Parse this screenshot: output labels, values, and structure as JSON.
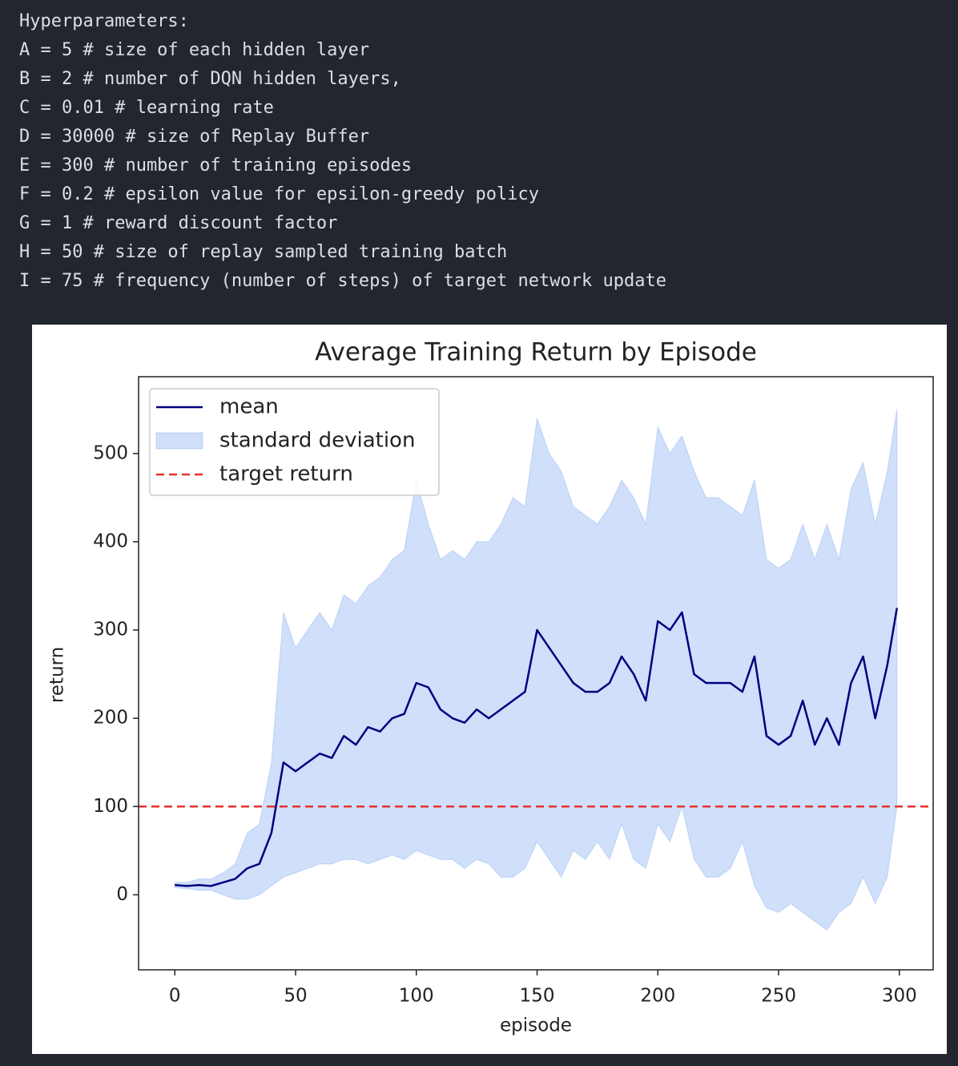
{
  "code": {
    "heading": "Hyperparameters:",
    "lines": [
      "A = 5 # size of each hidden layer",
      "B = 2 # number of DQN hidden layers,",
      "C = 0.01 # learning rate",
      "D = 30000 # size of Replay Buffer",
      "E = 300 # number of training episodes",
      "F = 0.2 # epsilon value for epsilon-greedy policy",
      "G = 1 # reward discount factor",
      "H = 50 # size of replay sampled training batch",
      "I = 75 # frequency (number of steps) of target network update"
    ]
  },
  "chart_data": {
    "type": "line",
    "title": "Average Training Return by Episode",
    "x_label": "episode",
    "y_label": "return",
    "x": [
      0,
      5,
      10,
      15,
      20,
      25,
      30,
      35,
      40,
      45,
      50,
      55,
      60,
      65,
      70,
      75,
      80,
      85,
      90,
      95,
      100,
      105,
      110,
      115,
      120,
      125,
      130,
      135,
      140,
      145,
      150,
      155,
      160,
      165,
      170,
      175,
      180,
      185,
      190,
      195,
      200,
      205,
      210,
      215,
      220,
      225,
      230,
      235,
      240,
      245,
      250,
      255,
      260,
      265,
      270,
      275,
      280,
      285,
      290,
      295,
      299
    ],
    "series": [
      {
        "name": "mean",
        "color": "#00007f",
        "values": [
          11,
          10,
          11,
          10,
          14,
          18,
          30,
          35,
          70,
          150,
          140,
          150,
          160,
          155,
          180,
          170,
          190,
          185,
          200,
          205,
          240,
          235,
          210,
          200,
          195,
          210,
          200,
          210,
          220,
          230,
          300,
          280,
          260,
          240,
          230,
          230,
          240,
          270,
          250,
          220,
          310,
          300,
          320,
          250,
          240,
          240,
          240,
          230,
          270,
          180,
          170,
          180,
          220,
          170,
          200,
          170,
          240,
          270,
          200,
          260,
          325
        ]
      }
    ],
    "band": {
      "name": "standard deviation",
      "color": "#6495ed",
      "lower": [
        8,
        7,
        5,
        5,
        0,
        -5,
        -5,
        0,
        10,
        20,
        25,
        30,
        35,
        35,
        40,
        40,
        35,
        40,
        45,
        40,
        50,
        45,
        40,
        40,
        30,
        40,
        35,
        20,
        20,
        30,
        60,
        40,
        20,
        50,
        40,
        60,
        40,
        80,
        40,
        30,
        80,
        60,
        100,
        40,
        20,
        20,
        30,
        60,
        10,
        -15,
        -20,
        -10,
        -20,
        -30,
        -40,
        -20,
        -10,
        20,
        -10,
        20,
        100
      ],
      "upper": [
        14,
        14,
        18,
        18,
        25,
        35,
        70,
        80,
        150,
        320,
        280,
        300,
        320,
        300,
        340,
        330,
        350,
        360,
        380,
        390,
        470,
        420,
        380,
        390,
        380,
        400,
        400,
        420,
        450,
        440,
        540,
        500,
        480,
        440,
        430,
        420,
        440,
        470,
        450,
        420,
        530,
        500,
        520,
        480,
        450,
        450,
        440,
        430,
        470,
        380,
        370,
        380,
        420,
        380,
        420,
        380,
        460,
        490,
        420,
        480,
        550
      ]
    },
    "target": {
      "name": "target return",
      "color": "#e8312e",
      "value": 100
    },
    "xlim": [
      -15,
      314
    ],
    "ylim": [
      -85,
      587
    ],
    "xticks": [
      0,
      50,
      100,
      150,
      200,
      250,
      300
    ],
    "yticks": [
      0,
      100,
      200,
      300,
      400,
      500
    ],
    "legend": "upper left"
  }
}
